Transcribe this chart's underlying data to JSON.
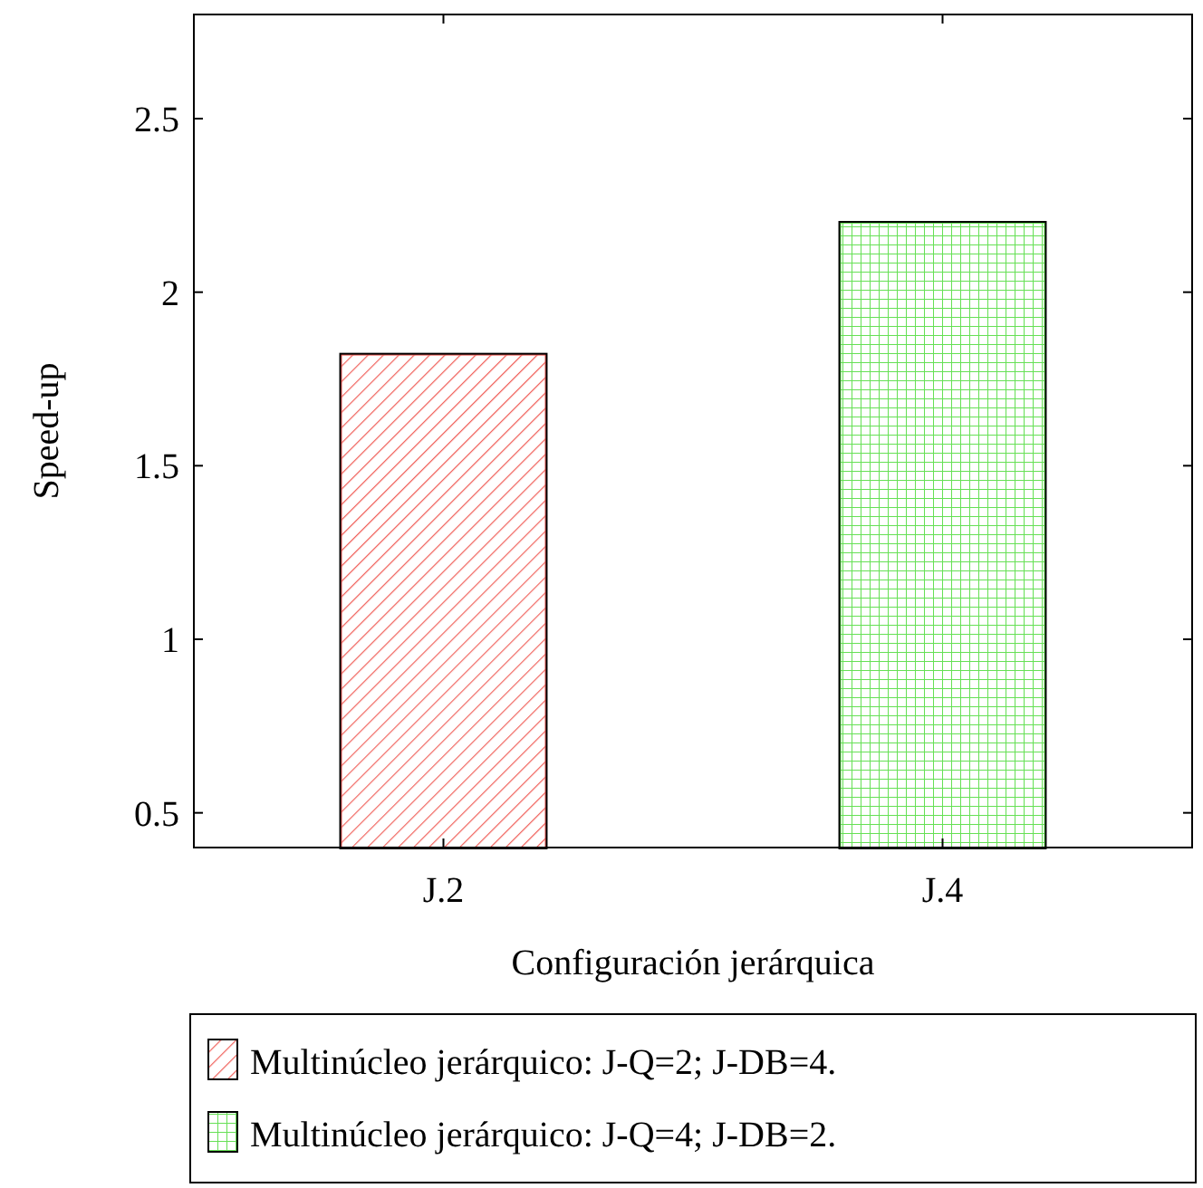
{
  "chart_data": {
    "type": "bar",
    "xlabel": "Configuración jerárquica",
    "ylabel": "Speed-up",
    "categories": [
      "J.2",
      "J.4"
    ],
    "series": [
      {
        "name": "Multinúcleo jerárquico: J-Q=2; J-DB=4.",
        "color": "#f0605a",
        "values": [
          1.82,
          null
        ]
      },
      {
        "name": "Multinúcleo jerárquico: J-Q=4; J-DB=2.",
        "color": "#66e055",
        "values": [
          null,
          2.2
        ]
      }
    ],
    "ylim": [
      0.4,
      2.8
    ],
    "yticks": [
      0.5,
      1,
      1.5,
      2,
      2.5
    ],
    "grid": false,
    "legend": "bottom"
  }
}
